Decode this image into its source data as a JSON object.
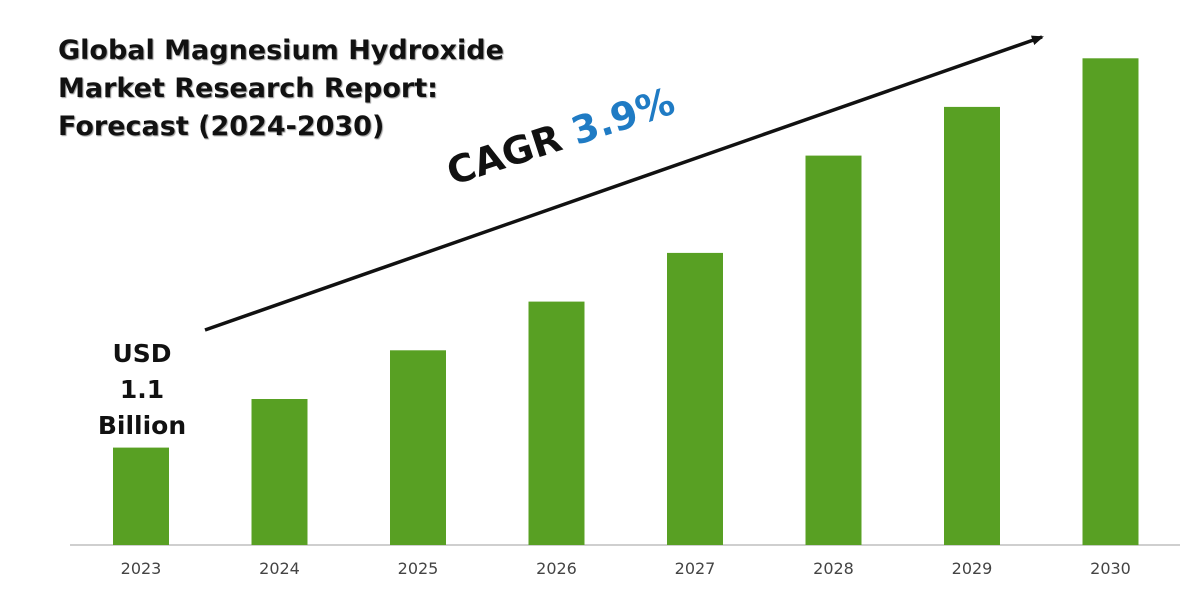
{
  "title_lines": [
    "Global Magnesium Hydroxide",
    "Market Research Report:",
    "Forecast (2024-2030)"
  ],
  "cagr": {
    "label": "CAGR",
    "value": "3.9%"
  },
  "start_value_label": [
    "USD",
    "1.1",
    "Billion"
  ],
  "colors": {
    "bar": "#58a023",
    "cagr_value": "#1f7bc4",
    "text": "#111111"
  },
  "chart_data": {
    "type": "bar",
    "title": "Global Magnesium Hydroxide Market Research Report: Forecast (2024-2030)",
    "categories": [
      "2023",
      "2024",
      "2025",
      "2026",
      "2027",
      "2028",
      "2029",
      "2030"
    ],
    "values": [
      1.1,
      1.65,
      2.2,
      2.75,
      3.3,
      4.4,
      4.95,
      5.5
    ],
    "ylim": [
      0,
      6
    ],
    "xlabel": "",
    "ylabel": "",
    "grid": false,
    "legend": "none",
    "annotations": [
      "CAGR 3.9%",
      "USD 1.1 Billion"
    ]
  }
}
